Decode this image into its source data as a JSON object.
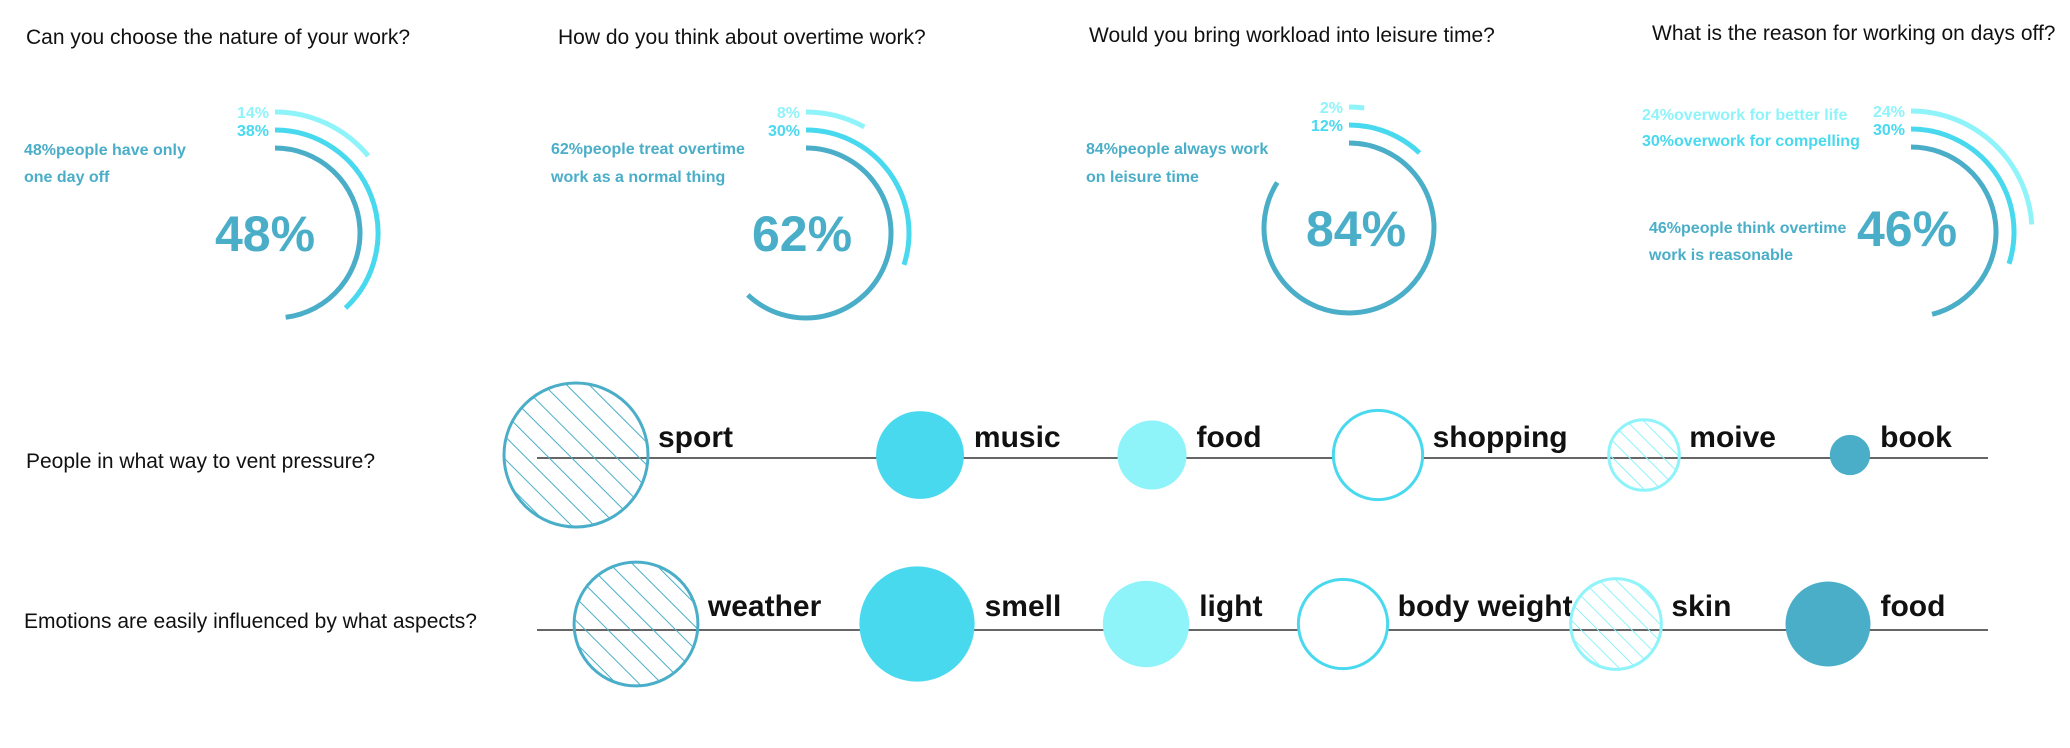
{
  "colors": {
    "dark": "#4aaec8",
    "mid": "#48d9ef",
    "light": "#8ff3fa",
    "axis": "#666666",
    "text": "#111111"
  },
  "chart_data": [
    {
      "type": "radial-bar",
      "title": "Can you choose the nature of your work?",
      "center_label": "48%",
      "rings": [
        {
          "label": "48%",
          "value": 48,
          "tone": "dark"
        },
        {
          "label": "38%",
          "value": 38,
          "tone": "mid"
        },
        {
          "label": "14%",
          "value": 14,
          "tone": "light"
        }
      ],
      "notes": [
        {
          "text": "48%people have only",
          "tone": "dark"
        },
        {
          "text": "one day off",
          "tone": "dark"
        }
      ]
    },
    {
      "type": "radial-bar",
      "title": "How do you think about overtime work?",
      "center_label": "62%",
      "rings": [
        {
          "label": "62%",
          "value": 62,
          "tone": "dark"
        },
        {
          "label": "30%",
          "value": 30,
          "tone": "mid"
        },
        {
          "label": "8%",
          "value": 8,
          "tone": "light"
        }
      ],
      "notes": [
        {
          "text": "62%people treat overtime",
          "tone": "dark"
        },
        {
          "text": "work as a normal thing",
          "tone": "dark"
        }
      ]
    },
    {
      "type": "radial-bar",
      "title": "Would you bring workload into leisure time?",
      "center_label": "84%",
      "rings": [
        {
          "label": "84%",
          "value": 84,
          "tone": "dark"
        },
        {
          "label": "12%",
          "value": 12,
          "tone": "mid"
        },
        {
          "label": "2%",
          "value": 2,
          "tone": "light"
        }
      ],
      "notes": [
        {
          "text": "84%people always work",
          "tone": "dark"
        },
        {
          "text": "on leisure time",
          "tone": "dark"
        }
      ]
    },
    {
      "type": "radial-bar",
      "title": "What is the reason for working on days off?",
      "center_label": "46%",
      "rings": [
        {
          "label": "46%",
          "value": 46,
          "tone": "dark"
        },
        {
          "label": "30%",
          "value": 30,
          "tone": "mid"
        },
        {
          "label": "24%",
          "value": 24,
          "tone": "light"
        }
      ],
      "notes": [
        {
          "text": "24%overwork for better life",
          "tone": "light"
        },
        {
          "text": "30%overwork for compelling",
          "tone": "mid"
        },
        {
          "text": "46%people think overtime",
          "tone": "dark"
        },
        {
          "text": "work is reasonable",
          "tone": "dark"
        }
      ]
    },
    {
      "type": "bubble",
      "title": "People in what way to vent pressure?",
      "items": [
        {
          "label": "sport",
          "size": 1.0,
          "style": "hatched-dark"
        },
        {
          "label": "music",
          "size": 0.61,
          "style": "filled-mid"
        },
        {
          "label": "food",
          "size": 0.48,
          "style": "filled-light"
        },
        {
          "label": "shopping",
          "size": 0.62,
          "style": "outline-mid"
        },
        {
          "label": "moive",
          "size": 0.49,
          "style": "hatched-light"
        },
        {
          "label": "book",
          "size": 0.28,
          "style": "filled-dark"
        }
      ]
    },
    {
      "type": "bubble",
      "title": "Emotions are easily influenced by what aspects?",
      "items": [
        {
          "label": "weather",
          "size": 0.86,
          "style": "hatched-dark"
        },
        {
          "label": "smell",
          "size": 0.8,
          "style": "filled-mid"
        },
        {
          "label": "light",
          "size": 0.6,
          "style": "filled-light"
        },
        {
          "label": "body weight",
          "size": 0.62,
          "style": "outline-mid"
        },
        {
          "label": "skin",
          "size": 0.63,
          "style": "hatched-light"
        },
        {
          "label": "food",
          "size": 0.59,
          "style": "filled-dark"
        }
      ]
    }
  ]
}
